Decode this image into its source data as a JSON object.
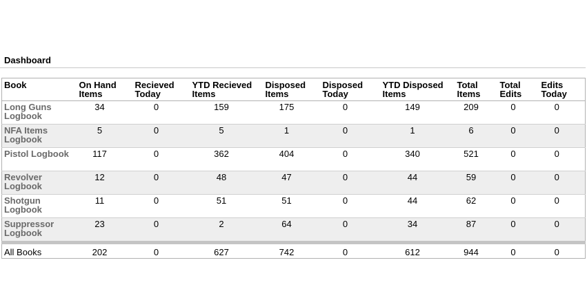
{
  "dashboard": {
    "title": "Dashboard",
    "columns": [
      [
        "Book"
      ],
      [
        "On Hand",
        "Items"
      ],
      [
        "Recieved",
        "Today"
      ],
      [
        "YTD Recieved",
        "Items"
      ],
      [
        "Disposed",
        "Items"
      ],
      [
        "Disposed",
        "Today"
      ],
      [
        "YTD Disposed",
        "Items"
      ],
      [
        "Total",
        "Items"
      ],
      [
        "Total",
        "Edits"
      ],
      [
        "Edits",
        "Today"
      ]
    ],
    "rows": [
      {
        "book": [
          "Long Guns",
          "Logbook"
        ],
        "values": [
          "34",
          "0",
          "159",
          "175",
          "0",
          "149",
          "209",
          "0",
          "0"
        ]
      },
      {
        "book": [
          "NFA Items",
          "Logbook"
        ],
        "values": [
          "5",
          "0",
          "5",
          "1",
          "0",
          "1",
          "6",
          "0",
          "0"
        ]
      },
      {
        "book": [
          "Pistol Logbook"
        ],
        "values": [
          "117",
          "0",
          "362",
          "404",
          "0",
          "340",
          "521",
          "0",
          "0"
        ]
      },
      {
        "book": [
          "Revolver",
          "Logbook"
        ],
        "values": [
          "12",
          "0",
          "48",
          "47",
          "0",
          "44",
          "59",
          "0",
          "0"
        ]
      },
      {
        "book": [
          "Shotgun",
          "Logbook"
        ],
        "values": [
          "11",
          "0",
          "51",
          "51",
          "0",
          "44",
          "62",
          "0",
          "0"
        ]
      },
      {
        "book": [
          "Suppressor",
          "Logbook"
        ],
        "values": [
          "23",
          "0",
          "2",
          "64",
          "0",
          "34",
          "87",
          "0",
          "0"
        ]
      }
    ],
    "total": {
      "book": "All Books",
      "values": [
        "202",
        "0",
        "627",
        "742",
        "0",
        "612",
        "944",
        "0",
        "0"
      ]
    }
  }
}
